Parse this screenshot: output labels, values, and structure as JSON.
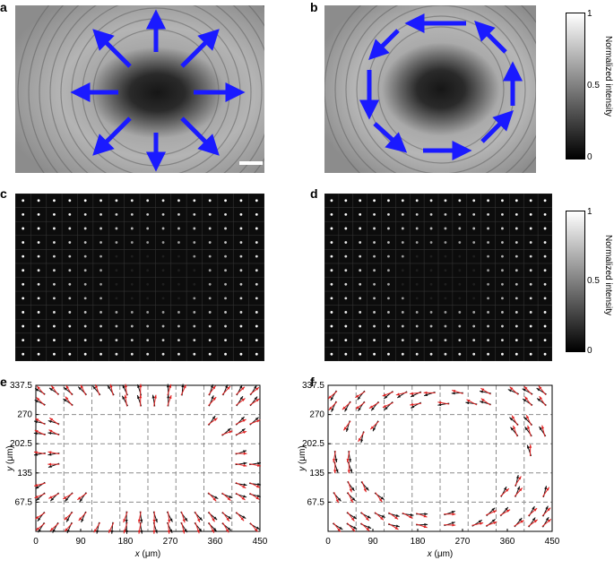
{
  "panels": {
    "a": "a",
    "b": "b",
    "c": "c",
    "d": "d",
    "e": "e",
    "f": "f"
  },
  "colorbar_top": {
    "label": "Normalized intensity",
    "ticks": [
      "1",
      "0.5",
      "0"
    ]
  },
  "colorbar_mid": {
    "label": "Normalized intensity",
    "ticks": [
      "1",
      "0.5",
      "0"
    ]
  },
  "colors": {
    "arrow_blue": "#1a1aff",
    "vector_red": "#e02020",
    "vector_black": "#111111",
    "grid_gray": "#8c8c8c"
  },
  "chart_data": [
    {
      "id": "e",
      "type": "quiver",
      "xlabel_var": "x",
      "xlabel_unit": "(μm)",
      "ylabel_var": "y",
      "ylabel_unit": "(μm)",
      "xlim": [
        0,
        450
      ],
      "ylim": [
        0,
        337.5
      ],
      "xticks": [
        "0",
        "90",
        "180",
        "270",
        "360",
        "450"
      ],
      "yticks": [
        "67.5",
        "135",
        "202.5",
        "270",
        "337.5"
      ],
      "pattern": "radial",
      "grid_x": [
        56.25,
        112.5,
        168.75,
        225,
        281.25,
        337.5,
        393.75
      ],
      "grid_y": [
        67.5,
        135,
        202.5,
        270
      ]
    },
    {
      "id": "f",
      "type": "quiver",
      "xlabel_var": "x",
      "xlabel_unit": "(μm)",
      "ylabel_var": "y",
      "ylabel_unit": "(μm)",
      "xlim": [
        0,
        450
      ],
      "ylim": [
        0,
        337.5
      ],
      "xticks": [
        "0",
        "90",
        "180",
        "270",
        "360",
        "450"
      ],
      "yticks": [
        "67.5",
        "135",
        "202.5",
        "270",
        "337.5"
      ],
      "pattern": "azimuthal",
      "grid_x": [
        56.25,
        112.5,
        168.75,
        225,
        281.25,
        337.5,
        393.75
      ],
      "grid_y": [
        67.5,
        135,
        202.5,
        270
      ]
    }
  ]
}
